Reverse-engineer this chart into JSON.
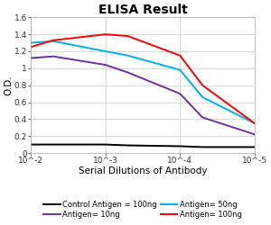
{
  "title": "ELISA Result",
  "ylabel": "O.D.",
  "xlabel": "Serial Dilutions of Antibody",
  "xlim": [
    0.01,
    1e-05
  ],
  "ylim": [
    0,
    1.6
  ],
  "yticks": [
    0,
    0.2,
    0.4,
    0.6,
    0.8,
    1.0,
    1.2,
    1.4,
    1.6
  ],
  "ytick_labels": [
    "0",
    "0.2",
    "0.4",
    "0.6",
    "0.8",
    "1",
    "1.2",
    "1.4",
    "1.6"
  ],
  "xticks": [
    0.01,
    0.001,
    0.0001,
    1e-05
  ],
  "xticklabels": [
    "10^-2",
    "10^-3",
    "10^-4",
    "10^-5"
  ],
  "series": [
    {
      "label": "Control Antigen = 100ng",
      "color": "#000000",
      "x": [
        0.01,
        0.005,
        0.001,
        0.0005,
        0.0001,
        5e-05,
        1e-05
      ],
      "y": [
        0.1,
        0.1,
        0.1,
        0.09,
        0.08,
        0.07,
        0.07
      ]
    },
    {
      "label": "Antigen= 10ng",
      "color": "#7030A0",
      "x": [
        0.01,
        0.005,
        0.001,
        0.0005,
        0.0001,
        5e-05,
        1e-05
      ],
      "y": [
        1.12,
        1.14,
        1.04,
        0.95,
        0.7,
        0.42,
        0.22
      ]
    },
    {
      "label": "Antigen= 50ng",
      "color": "#00B0F0",
      "x": [
        0.01,
        0.005,
        0.001,
        0.0005,
        0.0001,
        5e-05,
        1e-05
      ],
      "y": [
        1.3,
        1.32,
        1.2,
        1.15,
        0.98,
        0.66,
        0.35
      ]
    },
    {
      "label": "Antigen= 100ng",
      "color": "#FF0000",
      "x": [
        0.01,
        0.005,
        0.001,
        0.0005,
        0.0001,
        5e-05,
        1e-05
      ],
      "y": [
        1.25,
        1.33,
        1.4,
        1.38,
        1.15,
        0.8,
        0.35
      ]
    }
  ],
  "legend_items": [
    {
      "label": "Control Antigen = 100ng",
      "color": "#000000"
    },
    {
      "label": "Antigen= 10ng",
      "color": "#7030A0"
    },
    {
      "label": "Antigen= 50ng",
      "color": "#00B0F0"
    },
    {
      "label": "Antigen= 100ng",
      "color": "#FF0000"
    }
  ],
  "legend_fontsize": 6,
  "title_fontsize": 10,
  "axis_label_fontsize": 7.5,
  "tick_fontsize": 6.5,
  "background_color": "#ffffff",
  "grid_color": "#c8c8c8"
}
